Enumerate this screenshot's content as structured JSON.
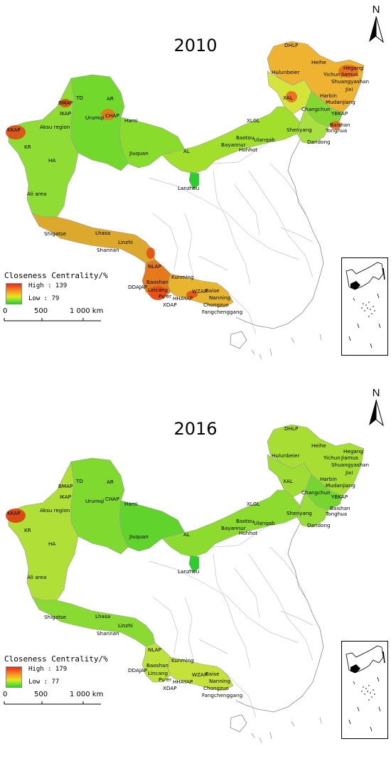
{
  "compass_letter": "N",
  "legend_title": "Closeness Centrality/%",
  "scale_labels": [
    "0",
    "500",
    "1 000 km"
  ],
  "panels": [
    {
      "year": "2010",
      "legend_high": "High : 139",
      "legend_low": "Low : 79",
      "colors": {
        "northeast": "#d4e43a",
        "heilongjiang": "#eeb330",
        "jilin": "#86d830",
        "liaoning": "#a8e040",
        "inner_mongolia": "#a2df2c",
        "gansu": "#8adc2c",
        "xinjiang_east": "#72d92c",
        "xinjiang_west": "#8fdc34",
        "tibet": "#dca92c",
        "yunnan": "#e47a1c",
        "guangxi": "#e8b52e",
        "lanzhou": "#2ccd2c"
      },
      "hotspots": [
        {
          "name": "KKAP",
          "color": "#e04a14"
        },
        {
          "name": "CHAP",
          "color": "#e8761c"
        },
        {
          "name": "BMAP",
          "color": "#dc4e14"
        },
        {
          "name": "Heilongjiang",
          "color": "#e86a1c"
        },
        {
          "name": "Yunnan",
          "color": "#e44e14"
        }
      ],
      "labels": [
        "DHLP",
        "Hulunbeier",
        "Heihe",
        "Hegang",
        "Yichun",
        "Jiamus",
        "Shuangyashan",
        "Jixi",
        "XAL",
        "Harbin",
        "Mudanjiang",
        "Changchun",
        "YBKAP",
        "Baishan",
        "Tonghua",
        "Shenyang",
        "Dandong",
        "XLGL",
        "Baotou",
        "Ulanqab",
        "Bayannur",
        "Hohhot",
        "AL",
        "Jiuquan",
        "Hami",
        "TD",
        "AR",
        "BMAP",
        "IKAP",
        "Urumqi",
        "CHAP",
        "KKAP",
        "Aksu region",
        "KR",
        "HA",
        "Ali area",
        "Shigatse",
        "Lhasa",
        "Linzhi",
        "Shannan",
        "Lanzhou",
        "NLAP",
        "Kunming",
        "Baoshan",
        "DDAJAP",
        "Lincang",
        "Pu'er",
        "XDAP",
        "HHAYAP",
        "WZAP",
        "Baise",
        "Nanning",
        "Chongzuo",
        "Fangchenggang"
      ]
    },
    {
      "year": "2016",
      "legend_high": "High : 179",
      "legend_low": "Low : 77",
      "colors": {
        "northeast": "#9fdc34",
        "heilongjiang": "#a6df32",
        "jilin": "#74d62e",
        "liaoning": "#98dc38",
        "inner_mongolia": "#8ddb2e",
        "gansu": "#60d32c",
        "xinjiang_east": "#7fd92e",
        "xinjiang_west": "#b0e038",
        "tibet": "#8ada34",
        "yunnan": "#bde23a",
        "guangxi": "#c5e23c",
        "lanzhou": "#2ccd2c"
      },
      "hotspots": [
        {
          "name": "KKAP",
          "color": "#e03a12"
        }
      ],
      "labels": [
        "DHLP",
        "Hulunbeier",
        "Heihe",
        "Hegang",
        "Yichun",
        "Jiamus",
        "Shuangyashan",
        "Jixi",
        "XAL",
        "Harbin",
        "Mudanjiang",
        "Changchun",
        "YBKAP",
        "Baishan",
        "Tonghua",
        "Shenyang",
        "Dandong",
        "XLGL",
        "Baotou",
        "Ulanqab",
        "Bayannur",
        "Hohhot",
        "AL",
        "Jiuquan",
        "Hami",
        "TD",
        "AR",
        "BMAP",
        "IKAP",
        "Urumqi",
        "CHAP",
        "KKAP",
        "Aksu region",
        "KR",
        "HA",
        "Ali area",
        "Shigatse",
        "Lhasa",
        "Linzhi",
        "Shannan",
        "Lanzhou",
        "NLAP",
        "Kunming",
        "Baoshan",
        "DDAJAP",
        "Lincang",
        "Pu'er",
        "XDAP",
        "HHAYAP",
        "WZAP",
        "Baise",
        "Nanning",
        "Chongzuo",
        "Fangchenggang"
      ]
    }
  ]
}
